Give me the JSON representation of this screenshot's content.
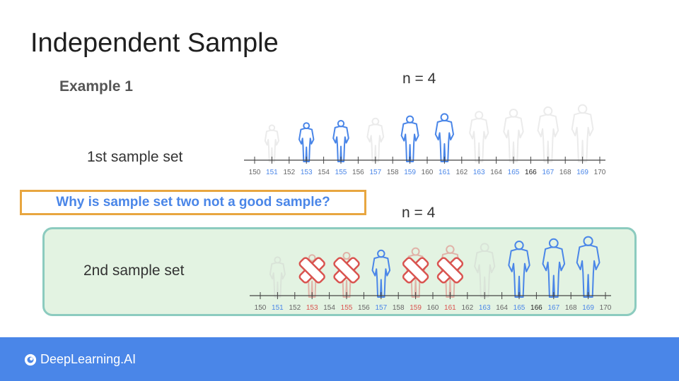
{
  "slide": {
    "title": "Independent Sample",
    "example": "Example 1",
    "question": "Why is sample set two not a good sample?"
  },
  "set1": {
    "label": "1st sample set",
    "n_label": "n = 4",
    "ticks": [
      "150",
      "151",
      "152",
      "153",
      "154",
      "155",
      "156",
      "157",
      "158",
      "159",
      "160",
      "161",
      "162",
      "163",
      "164",
      "165",
      "166",
      "167",
      "168",
      "169",
      "170"
    ],
    "highlighted_people_at": [
      153,
      155,
      159,
      161
    ]
  },
  "set2": {
    "label": "2nd sample set",
    "n_label": "n = 4",
    "ticks": [
      "150",
      "151",
      "152",
      "153",
      "154",
      "155",
      "156",
      "157",
      "158",
      "159",
      "160",
      "161",
      "162",
      "163",
      "164",
      "165",
      "166",
      "167",
      "168",
      "169",
      "170"
    ],
    "crossed_out_at": [
      153,
      155,
      159,
      161
    ],
    "highlighted_people_at": [
      157,
      165,
      167,
      169
    ]
  },
  "footer": {
    "brand": "DeepLearning.AI"
  },
  "colors": {
    "blue": "#4a86e8",
    "red": "#d9534f",
    "black": "#222222",
    "gray": "#666666",
    "accent_box": "#e8a640",
    "panel_bg": "#e3f3e2"
  }
}
